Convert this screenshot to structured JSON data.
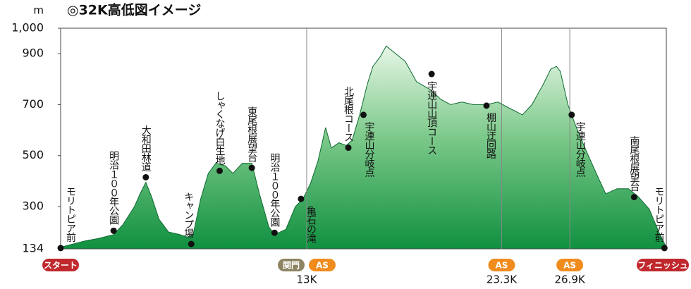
{
  "chart_data": {
    "type": "area",
    "title": "◎32K高低図イメージ",
    "y_unit": "m",
    "color": "#1f9a48",
    "ylim": [
      134,
      1000
    ],
    "yticks": [
      134,
      300,
      500,
      700,
      900,
      {
        "value": 1000,
        "label": "1,000"
      }
    ],
    "xlim": [
      0,
      32
    ],
    "xticks": [
      {
        "value": 13,
        "label": "13K"
      },
      {
        "value": 23.3,
        "label": "23.3K"
      },
      {
        "value": 26.9,
        "label": "26.9K"
      }
    ],
    "x": [
      0,
      0.5,
      1.3,
      2.0,
      2.8,
      3.3,
      3.9,
      4.2,
      4.5,
      4.8,
      5.2,
      5.7,
      6.3,
      6.7,
      7.0,
      7.4,
      7.8,
      8.2,
      8.7,
      9.1,
      9.6,
      10.1,
      10.5,
      11.0,
      11.3,
      11.9,
      12.4,
      12.8,
      13.2,
      13.6,
      14.0,
      14.3,
      14.7,
      15.1,
      15.4,
      15.8,
      16.2,
      16.5,
      16.9,
      17.2,
      17.7,
      18.2,
      18.8,
      19.5,
      20.1,
      20.6,
      21.2,
      21.8,
      22.5,
      23.1,
      23.6,
      24.4,
      24.9,
      25.5,
      25.9,
      26.2,
      26.4,
      26.8,
      27.2,
      27.7,
      28.3,
      28.8,
      29.4,
      30.0,
      30.5,
      31.1,
      31.6,
      32.0
    ],
    "values": [
      140,
      150,
      165,
      175,
      190,
      230,
      300,
      350,
      395,
      340,
      250,
      200,
      190,
      180,
      190,
      330,
      430,
      470,
      460,
      430,
      470,
      470,
      350,
      220,
      190,
      210,
      300,
      330,
      390,
      480,
      610,
      530,
      550,
      540,
      560,
      660,
      780,
      850,
      890,
      930,
      900,
      870,
      790,
      760,
      720,
      700,
      710,
      700,
      700,
      710,
      690,
      660,
      700,
      780,
      840,
      850,
      830,
      700,
      620,
      530,
      430,
      350,
      370,
      370,
      340,
      290,
      200,
      140
    ],
    "annotations": [
      {
        "label": "モリトピア前",
        "x": 0,
        "y": 137
      },
      {
        "label": "明治１００年公園",
        "x": 2.8,
        "y": 205
      },
      {
        "label": "大和田林道",
        "x": 4.5,
        "y": 415
      },
      {
        "label": "キャンプ場",
        "x": 6.9,
        "y": 153
      },
      {
        "label": "しゃくなげ白生地",
        "x": 8.4,
        "y": 440
      },
      {
        "label": "東尾根展望台",
        "x": 10.1,
        "y": 452
      },
      {
        "label": "明治１００年公園",
        "x": 11.3,
        "y": 197
      },
      {
        "label": "亀石の滝",
        "x": 12.7,
        "y": 330
      },
      {
        "label": "北尾根コース",
        "x": 15.2,
        "y": 531
      },
      {
        "label": "宇連山分岐点",
        "x": 16.0,
        "y": 660
      },
      {
        "label": "宇連山山頂コース",
        "x": 19.6,
        "y": 820
      },
      {
        "label": "棚山迂回路",
        "x": 22.5,
        "y": 696
      },
      {
        "label": "宇連山分岐点",
        "x": 27.0,
        "y": 660
      },
      {
        "label": "南尾根展望台",
        "x": 30.3,
        "y": 337
      },
      {
        "label": "モリトピア前",
        "x": 31.9,
        "y": 137
      }
    ],
    "badges": [
      {
        "label": "スタート",
        "x": 0,
        "color": "#c0282d"
      },
      {
        "label": "関門",
        "x": 13,
        "color": "#8c8462"
      },
      {
        "label": "AS",
        "x": 13,
        "color": "#f08c1e"
      },
      {
        "label": "AS",
        "x": 23.3,
        "color": "#f08c1e"
      },
      {
        "label": "AS",
        "x": 26.9,
        "color": "#f08c1e"
      },
      {
        "label": "フィニッシュ",
        "x": 32,
        "color": "#c0282d"
      }
    ]
  }
}
